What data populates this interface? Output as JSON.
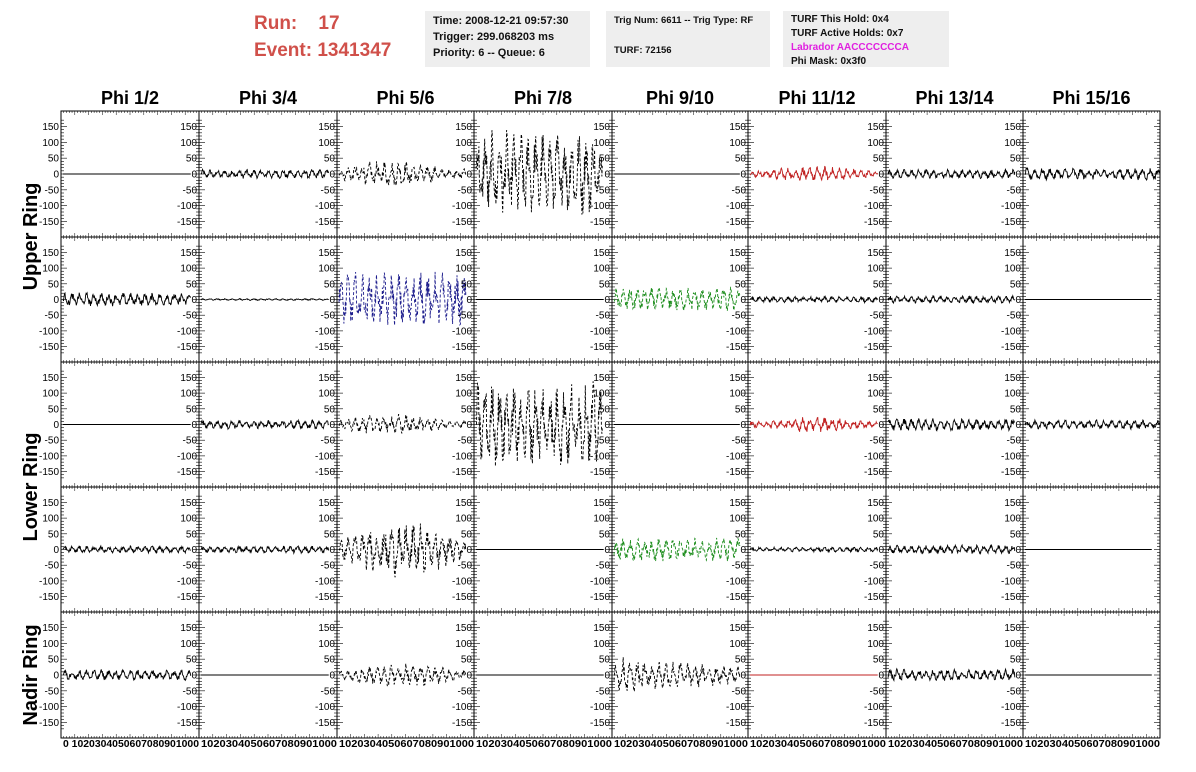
{
  "header": {
    "run_label": "Run:",
    "run_value": "17",
    "event_label": "Event:",
    "event_value": "1341347",
    "time": "Time: 2008-12-21 09:57:30",
    "trigger": "Trigger: 299.068203 ms",
    "priority": "Priority: 6 -- Queue: 6",
    "trig_num": "Trig Num: 6611 -- Trig Type: RF",
    "turf": "TURF: 72156",
    "turf_hold": "TURF This Hold: 0x4",
    "turf_active": "TURF Active Holds: 0x7",
    "labrador": "Labrador AACCCCCCCA",
    "phi_mask": "Phi Mask: 0x3f0"
  },
  "colors": {
    "run_text": "#d0504a",
    "labrador_text": "#e020e0",
    "black": "#000000",
    "blue": "#1c1c8c",
    "green": "#1a8c1a",
    "red": "#c02020"
  },
  "chart_data": {
    "type": "line",
    "columns": [
      "Phi 1/2",
      "Phi 3/4",
      "Phi 5/6",
      "Phi 7/8",
      "Phi 9/10",
      "Phi 11/12",
      "Phi 13/14",
      "Phi 15/16"
    ],
    "ring_labels": [
      "Upper Ring",
      "Lower Ring",
      "Nadir Ring"
    ],
    "ylim": [
      -180,
      180
    ],
    "yticks": [
      -150,
      -100,
      -50,
      0,
      50,
      100,
      150
    ],
    "xlim": [
      0,
      100
    ],
    "xtick_text": [
      "0 1020304050607080901000",
      "1020304050607080901000",
      "1020304050607080901000",
      "1020304050607080901000",
      "1020304050607080901000",
      "1020304050607080901000",
      "1020304050607080901000",
      "1020304050607080901000"
    ],
    "grid": false,
    "panels": [
      [
        {
          "amp": 0,
          "style": "solid",
          "color": "black",
          "flat": true
        },
        {
          "amp": 15,
          "style": "solid",
          "color": "black"
        },
        {
          "amp": 45,
          "style": "dashed",
          "color": "black",
          "env": "mid"
        },
        {
          "amp": 140,
          "style": "dashed",
          "color": "black",
          "env": "full",
          "length": 93
        },
        {
          "amp": 0,
          "style": "solid",
          "color": "black",
          "flat": true
        },
        {
          "amp": 25,
          "style": "solid",
          "color": "red",
          "env": "center"
        },
        {
          "amp": 15,
          "style": "solid",
          "color": "black"
        },
        {
          "amp": 20,
          "style": "solid",
          "color": "black",
          "length": 100
        }
      ],
      [
        {
          "amp": 22,
          "style": "solid",
          "color": "black"
        },
        {
          "amp": 3,
          "style": "solid",
          "color": "black"
        },
        {
          "amp": 90,
          "style": "dashed",
          "color": "blue",
          "env": "full"
        },
        {
          "amp": 0,
          "style": "solid",
          "color": "black",
          "flat": true
        },
        {
          "amp": 40,
          "style": "dashed",
          "color": "green",
          "env": "full"
        },
        {
          "amp": 10,
          "style": "solid",
          "color": "black"
        },
        {
          "amp": 12,
          "style": "solid",
          "color": "black"
        },
        {
          "amp": 0,
          "style": "solid",
          "color": "black",
          "flat": true
        }
      ],
      [
        {
          "amp": 0,
          "style": "solid",
          "color": "black",
          "flat": true
        },
        {
          "amp": 15,
          "style": "solid",
          "color": "black"
        },
        {
          "amp": 35,
          "style": "dashed",
          "color": "black",
          "env": "mid"
        },
        {
          "amp": 140,
          "style": "dashed",
          "color": "black",
          "env": "full",
          "length": 93
        },
        {
          "amp": 0,
          "style": "solid",
          "color": "black",
          "flat": true
        },
        {
          "amp": 25,
          "style": "solid",
          "color": "red",
          "env": "center"
        },
        {
          "amp": 20,
          "style": "solid",
          "color": "black"
        },
        {
          "amp": 15,
          "style": "solid",
          "color": "black",
          "length": 100
        }
      ],
      [
        {
          "amp": 12,
          "style": "solid",
          "color": "black"
        },
        {
          "amp": 12,
          "style": "solid",
          "color": "black"
        },
        {
          "amp": 90,
          "style": "dashed",
          "color": "black",
          "env": "center"
        },
        {
          "amp": 0,
          "style": "solid",
          "color": "black",
          "flat": true
        },
        {
          "amp": 40,
          "style": "dashed",
          "color": "green",
          "env": "full"
        },
        {
          "amp": 8,
          "style": "solid",
          "color": "black"
        },
        {
          "amp": 14,
          "style": "solid",
          "color": "black"
        },
        {
          "amp": 0,
          "style": "solid",
          "color": "black",
          "flat": true
        }
      ],
      [
        {
          "amp": 18,
          "style": "solid",
          "color": "black"
        },
        {
          "amp": 0,
          "style": "solid",
          "color": "black",
          "flat": true
        },
        {
          "amp": 40,
          "style": "dashed",
          "color": "black",
          "env": "center"
        },
        {
          "amp": 0,
          "style": "solid",
          "color": "black",
          "flat": true
        },
        {
          "amp": 60,
          "style": "dashed",
          "color": "black",
          "env": "left"
        },
        {
          "amp": 0,
          "style": "solid",
          "color": "red",
          "flat": true
        },
        {
          "amp": 20,
          "style": "solid",
          "color": "black"
        },
        {
          "amp": 0,
          "style": "solid",
          "color": "black",
          "flat": true
        }
      ]
    ]
  }
}
